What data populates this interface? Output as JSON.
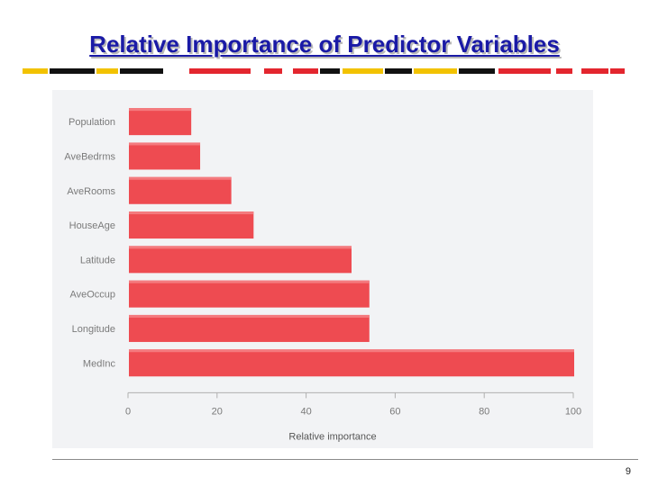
{
  "slide": {
    "title": "Relative Importance of Predictor Variables",
    "page_number": "9"
  },
  "colors": {
    "title": "#1a1aa6",
    "bar": "#ee4b51",
    "bar_highlight": "#f47a7e",
    "axis": "#b0b0b0",
    "text": "#7a7a7a",
    "stripe_red": "#e3262e",
    "stripe_yellow": "#f2c200",
    "stripe_black": "#111111"
  },
  "chart_data": {
    "type": "bar",
    "orientation": "horizontal",
    "title": "",
    "categories": [
      "Population",
      "AveBedrms",
      "AveRooms",
      "HouseAge",
      "Latitude",
      "AveOccup",
      "Longitude",
      "MedInc"
    ],
    "values": [
      14,
      16,
      23,
      28,
      50,
      54,
      54,
      100
    ],
    "xlabel": "Relative importance",
    "ylabel": "",
    "xlim": [
      0,
      100
    ],
    "xticks": [
      0,
      20,
      40,
      60,
      80,
      100
    ],
    "grid": false,
    "legend": "none"
  }
}
